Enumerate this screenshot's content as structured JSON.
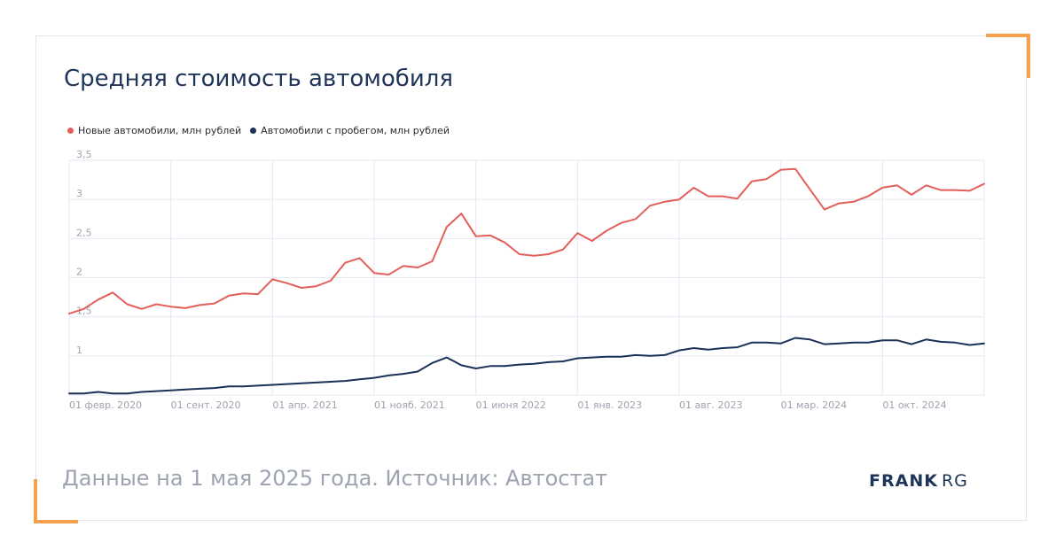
{
  "colors": {
    "accent": "#f5a04a",
    "title": "#1e3559",
    "footer": "#9ca3b1",
    "grid": "#e5e6f1",
    "new_series": "#e35f5a",
    "used_series": "#1b3158"
  },
  "title": "Средняя стоимость автомобиля",
  "footer": {
    "source": "Данные на 1 мая 2025 года. Источник: Автостат",
    "logo_bold": "FRANK",
    "logo_light": "RG"
  },
  "chart_data": {
    "type": "line",
    "title": "Средняя стоимость автомобиля",
    "xlabel": "",
    "ylabel": "",
    "x_start": "2020-02",
    "x_ticks": [
      "01 февр. 2020",
      "01 сент. 2020",
      "01 апр. 2021",
      "01 нояб. 2021",
      "01 июня 2022",
      "01 янв. 2023",
      "01 авг. 2023",
      "01 мар. 2024",
      "01 окт. 2024"
    ],
    "y_ticks": [
      "3,5",
      "3",
      "2,5",
      "2",
      "1,5",
      "1"
    ],
    "ylim": [
      0.5,
      3.5
    ],
    "grid": true,
    "legend_position": "top-left",
    "series": [
      {
        "name": "Новые автомобили, млн рублей",
        "color": "#e35f5a",
        "values": [
          1.54,
          1.6,
          1.72,
          1.81,
          1.66,
          1.6,
          1.66,
          1.63,
          1.61,
          1.65,
          1.67,
          1.77,
          1.8,
          1.79,
          1.98,
          1.93,
          1.87,
          1.89,
          1.96,
          2.19,
          2.25,
          2.06,
          2.04,
          2.15,
          2.13,
          2.21,
          2.65,
          2.82,
          2.53,
          2.54,
          2.45,
          2.3,
          2.28,
          2.3,
          2.36,
          2.57,
          2.47,
          2.6,
          2.7,
          2.75,
          2.92,
          2.97,
          3.0,
          3.15,
          3.04,
          3.04,
          3.01,
          3.23,
          3.26,
          3.38,
          3.39,
          3.13,
          2.87,
          2.95,
          2.97,
          3.04,
          3.15,
          3.18,
          3.06,
          3.18,
          3.12,
          3.12,
          3.11,
          3.2
        ]
      },
      {
        "name": "Автомобили с пробегом, млн рублей",
        "color": "#1b3158",
        "values": [
          0.52,
          0.52,
          0.54,
          0.52,
          0.52,
          0.54,
          0.55,
          0.56,
          0.57,
          0.58,
          0.59,
          0.61,
          0.61,
          0.62,
          0.63,
          0.64,
          0.65,
          0.66,
          0.67,
          0.68,
          0.7,
          0.72,
          0.75,
          0.77,
          0.8,
          0.91,
          0.98,
          0.88,
          0.84,
          0.87,
          0.87,
          0.89,
          0.9,
          0.92,
          0.93,
          0.97,
          0.98,
          0.99,
          0.99,
          1.01,
          1.0,
          1.01,
          1.07,
          1.1,
          1.08,
          1.1,
          1.11,
          1.17,
          1.17,
          1.16,
          1.23,
          1.21,
          1.15,
          1.16,
          1.17,
          1.17,
          1.2,
          1.2,
          1.15,
          1.21,
          1.18,
          1.17,
          1.14,
          1.16
        ]
      }
    ]
  }
}
